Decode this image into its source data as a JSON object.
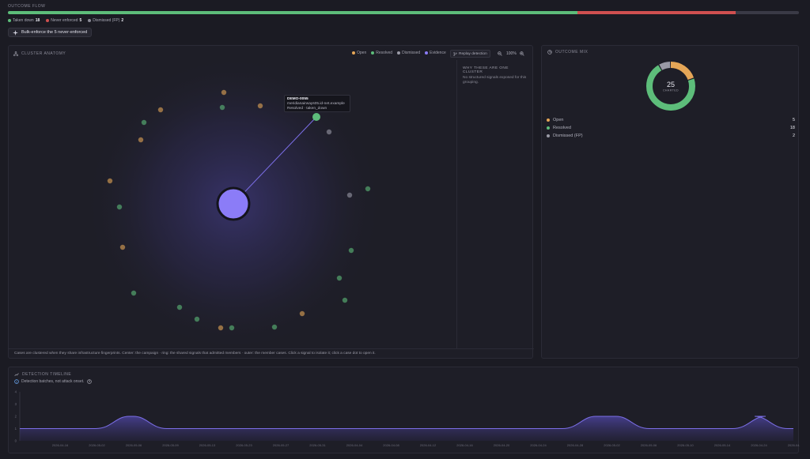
{
  "outcome_flow": {
    "title": "OUTCOME FLOW",
    "segments": [
      {
        "label": "Taken down",
        "value": "18",
        "color": "#5dbd7a",
        "fraction": 0.72
      },
      {
        "label": "Never enforced",
        "value": "5",
        "color": "#d05050",
        "fraction": 0.2
      },
      {
        "label": "Dismissed (FP)",
        "value": "2",
        "color": "#3a3a46",
        "dot": "#8a8a96",
        "fraction": 0.08
      }
    ],
    "bulk_button": "Bulk-enforce the 5 never-enforced"
  },
  "anatomy": {
    "title": "CLUSTER ANATOMY",
    "legend": [
      {
        "label": "Open",
        "color": "#e5a657"
      },
      {
        "label": "Resolved",
        "color": "#5dbd7a"
      },
      {
        "label": "Dismissed",
        "color": "#9a9aa6"
      },
      {
        "label": "Evidence",
        "color": "#8b7cf7"
      }
    ],
    "replay_label": "Replay detection",
    "zoom": "100%",
    "tooltip": {
      "id": "DEMO-0055",
      "domain": "meridianairways05.id-net.example",
      "status": "Resolved · taken_down"
    },
    "side_title": "WHY THESE ARE ONE CLUSTER",
    "side_text": "No structured signals exposed for this grouping.",
    "caption": "Cases are clustered when they share infrastructure fingerprints. Center: the campaign · ring: the shared signals that admitted members · outer: the member cases. Click a signal to isolate it; click a case dot to open it."
  },
  "mix": {
    "title": "OUTCOME MIX",
    "total": "25",
    "total_label": "CHARTED",
    "items": [
      {
        "label": "Open",
        "value": "5",
        "color": "#e5a657"
      },
      {
        "label": "Resolved",
        "value": "18",
        "color": "#5dbd7a"
      },
      {
        "label": "Dismissed (FP)",
        "value": "2",
        "color": "#9a9aa6"
      }
    ]
  },
  "timeline": {
    "title": "DETECTION TIMELINE",
    "note": "Detection batches, not attack onset."
  },
  "chart_data": {
    "type": "area",
    "x": [
      "2026-04-16",
      "2026-05-02",
      "2026-05-06",
      "2026-05-09",
      "2026-05-13",
      "2026-05-23",
      "2026-05-27",
      "2026-05-31",
      "2026-04-04",
      "2026-04-08",
      "2026-04-12",
      "2026-04-16",
      "2026-04-20",
      "2026-04-24",
      "2026-04-28",
      "2026-05-02",
      "2026-05-06",
      "2026-05-10",
      "2026-05-14",
      "2026-04-24",
      "2026-04-28"
    ],
    "values": [
      1,
      1,
      1,
      1,
      1,
      1,
      1,
      1,
      1,
      1,
      1,
      1,
      1,
      1,
      1,
      1,
      1,
      1,
      1,
      1,
      1
    ],
    "yticks": [
      "0",
      "1",
      "2",
      "3",
      "4"
    ],
    "ylim": [
      0,
      4
    ],
    "color": "#7b6ee6"
  }
}
